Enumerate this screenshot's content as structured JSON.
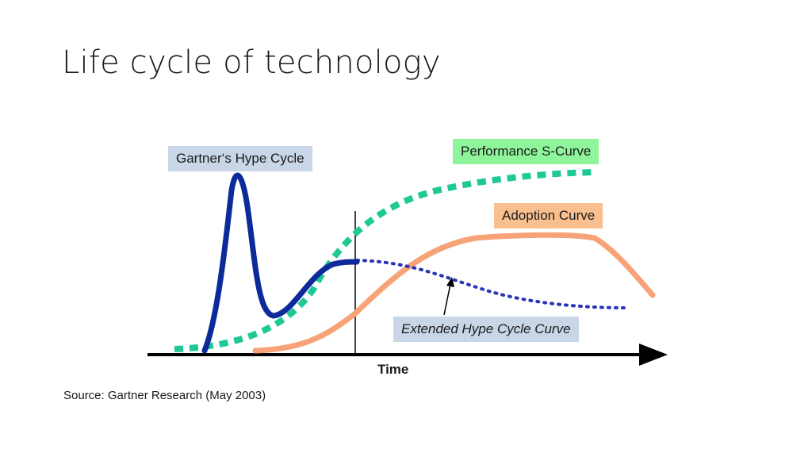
{
  "slide": {
    "title": "Life cycle of technology",
    "source": "Source: Gartner Research (May 2003)"
  },
  "diagram": {
    "labels": {
      "hype_cycle": "Gartner‘s Hype Cycle",
      "performance_curve": "Performance S-Curve",
      "adoption_curve": "Adoption Curve",
      "extended_hype_curve": "Extended Hype Cycle Curve",
      "x_axis": "Time"
    },
    "colors": {
      "hype_cycle": "#0d2a9a",
      "extended_hype": "#2a34b8",
      "performance": "#1fc995",
      "adoption": "#f7a377",
      "axis": "#000000"
    }
  }
}
